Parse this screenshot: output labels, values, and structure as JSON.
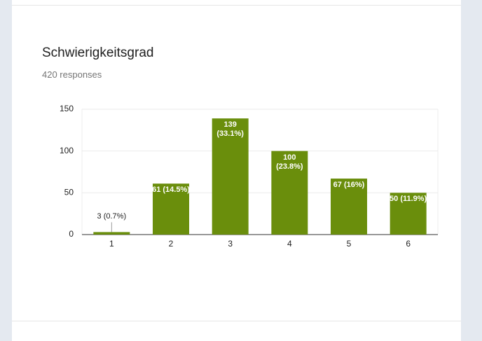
{
  "chart_data": {
    "type": "bar",
    "title": "Schwierigkeitsgrad",
    "subtitle": "420 responses",
    "categories": [
      "1",
      "2",
      "3",
      "4",
      "5",
      "6"
    ],
    "values": [
      3,
      61,
      139,
      100,
      67,
      50
    ],
    "value_labels": [
      "3 (0.7%)",
      "61 (14.5%)",
      "139 (33.1%)",
      "100 (23.8%)",
      "67 (16%)",
      "50 (11.9%)"
    ],
    "color": "#6a8e0c",
    "ylim": [
      0,
      150
    ],
    "yticks": [
      0,
      50,
      100,
      150
    ],
    "grid": true
  }
}
